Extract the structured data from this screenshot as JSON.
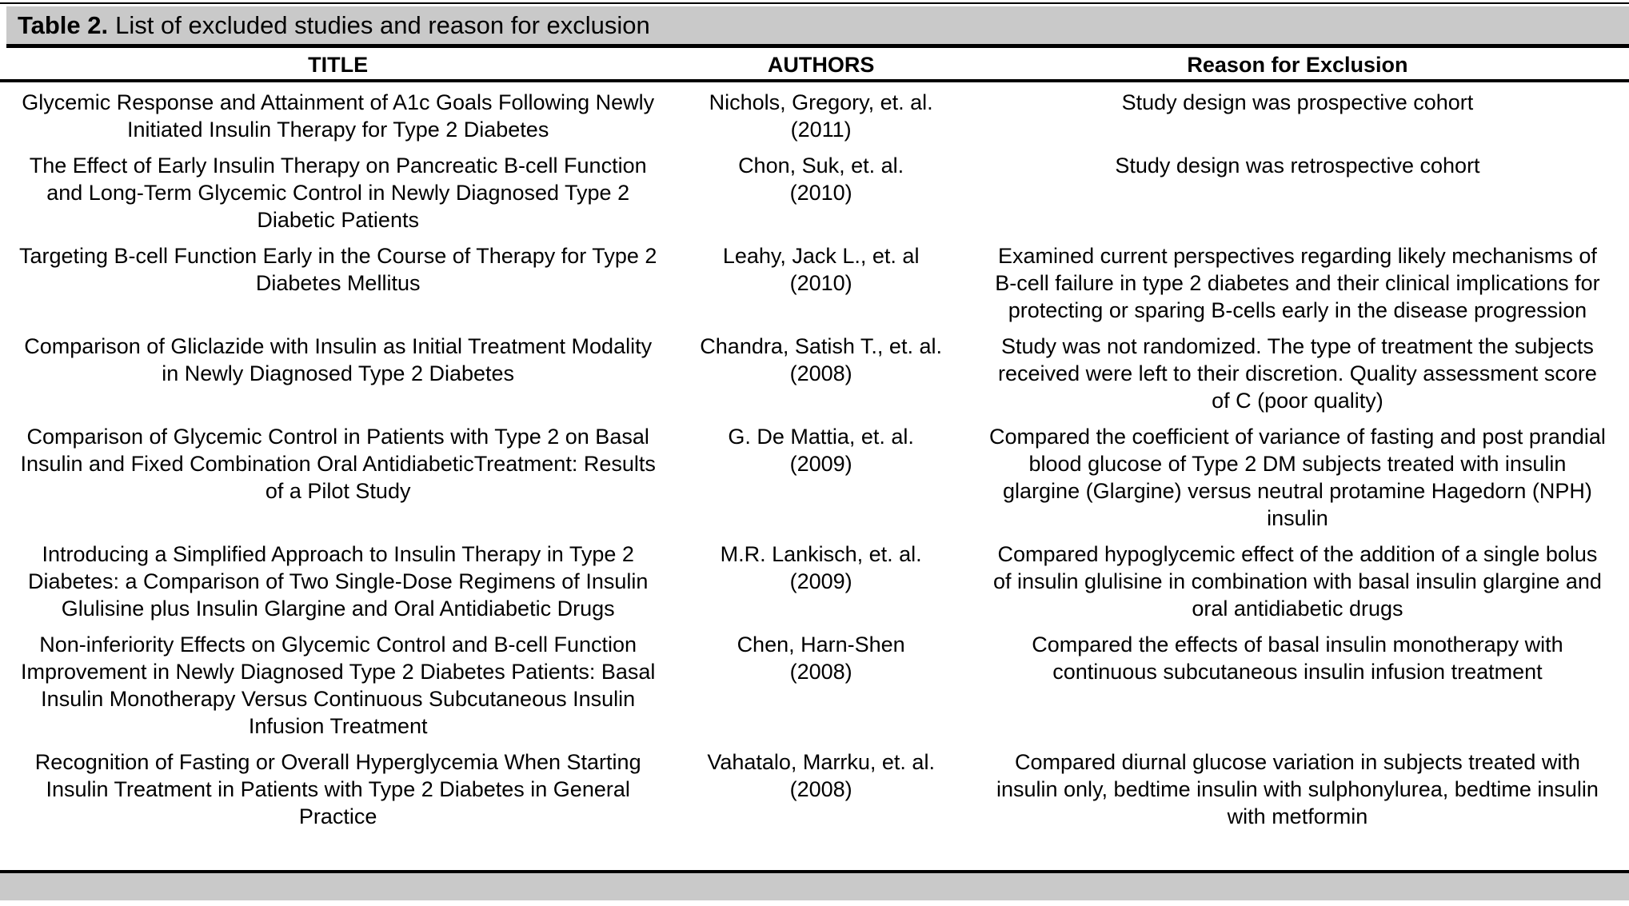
{
  "caption": {
    "label": "Table 2.",
    "text": "List of excluded studies and reason for exclusion"
  },
  "columns": [
    "TITLE",
    "AUTHORS",
    "Reason for Exclusion"
  ],
  "rows": [
    {
      "title": "Glycemic Response and Attainment of A1c Goals Following Newly Initiated Insulin Therapy for Type 2 Diabetes",
      "authors": "Nichols, Gregory, et. al.",
      "year": "(2011)",
      "reason": "Study design was prospective cohort"
    },
    {
      "title": "The Effect of Early Insulin Therapy on Pancreatic B-cell Function and Long-Term Glycemic Control in Newly Diagnosed Type 2 Diabetic Patients",
      "authors": "Chon, Suk, et. al.",
      "year": "(2010)",
      "reason": "Study design was retrospective cohort"
    },
    {
      "title": "Targeting B-cell Function Early in the Course of Therapy for Type 2 Diabetes Mellitus",
      "authors": "Leahy, Jack L., et. al",
      "year": "(2010)",
      "reason": "Examined current perspectives regarding likely mechanisms of B-cell failure in type 2 diabetes and their clinical implications for protecting or sparing B-cells early in the disease progression"
    },
    {
      "title": "Comparison of  Gliclazide with Insulin as Initial Treatment Modality in Newly Diagnosed Type 2 Diabetes",
      "authors": "Chandra, Satish T., et. al.",
      "year": "(2008)",
      "reason": "Study was not randomized.  The type of treatment the subjects received were left to their discretion. Quality assessment score of C (poor quality)"
    },
    {
      "title": "Comparison of Glycemic Control in Patients with Type 2 on Basal Insulin and Fixed Combination Oral AntidiabeticTreatment: Results of a Pilot Study",
      "authors": "G. De Mattia, et. al.",
      "year": "(2009)",
      "reason": "Compared the coefficient of variance of fasting and post prandial blood glucose of Type 2 DM subjects treated with insulin glargine (Glargine) versus neutral protamine Hagedorn (NPH) insulin"
    },
    {
      "title": "Introducing a Simplified Approach to Insulin Therapy in Type 2 Diabetes: a Comparison of Two Single-Dose Regimens of Insulin Glulisine plus Insulin Glargine and Oral Antidiabetic Drugs",
      "authors": "M.R. Lankisch, et. al.",
      "year": "(2009)",
      "reason": "Compared hypoglycemic effect of the addition of a single bolus of insulin glulisine in combination with basal insulin glargine and oral antidiabetic drugs"
    },
    {
      "title": "Non-inferiority Effects on Glycemic Control and B-cell Function Improvement in Newly Diagnosed Type 2 Diabetes Patients: Basal Insulin Monotherapy Versus Continuous Subcutaneous Insulin Infusion Treatment",
      "authors": "Chen, Harn-Shen",
      "year": "(2008)",
      "reason": "Compared the effects of basal insulin monotherapy with continuous subcutaneous insulin infusion treatment"
    },
    {
      "title": "Recognition of Fasting or Overall Hyperglycemia When Starting Insulin Treatment in Patients with Type 2 Diabetes in General Practice",
      "authors": "Vahatalo, Marrku, et. al.",
      "year": "(2008)",
      "reason": "Compared diurnal glucose variation in subjects treated with insulin only, bedtime insulin with sulphonylurea, bedtime insulin with metformin"
    }
  ],
  "colors": {
    "bar_gray": "#c9c9c9",
    "text_black": "#000000",
    "background": "#ffffff"
  }
}
